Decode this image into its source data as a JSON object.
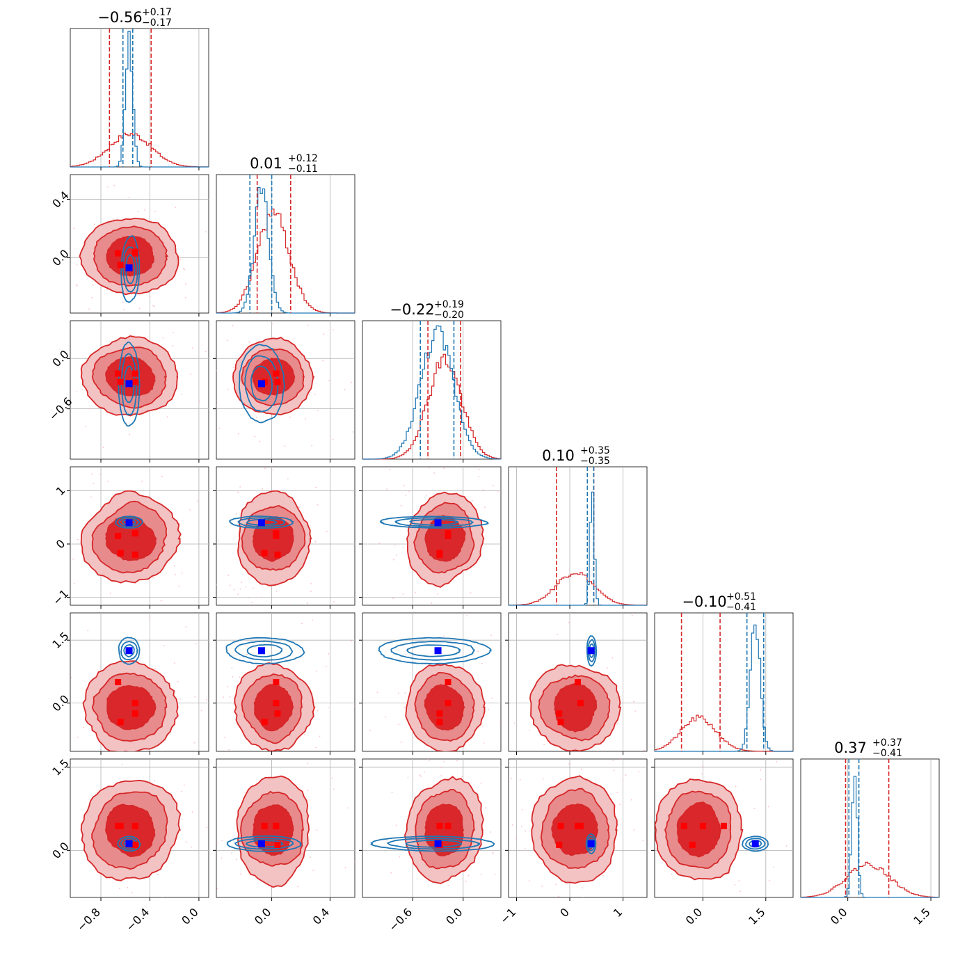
{
  "chart_data": {
    "type": "corner",
    "grid": true,
    "dimensions": 6,
    "colors": {
      "red": "#d62728",
      "red_fill_outer": "#f3c2c3",
      "red_fill_mid": "#e88b8d",
      "red_fill_inner": "#d9272b",
      "blue": "#1f77b4",
      "truth_blue": "#0000ff",
      "truth_red": "#ff0000",
      "grid": "#b0b0b0"
    },
    "params": [
      {
        "title": {
          "val": "−0.56",
          "plus": "+0.17",
          "minus": "−0.17"
        },
        "range": [
          -1.05,
          0.08
        ],
        "ticks": [
          -0.8,
          -0.4,
          0.0
        ],
        "tick_labels": [
          "−0.8",
          "−0.4",
          "0.0"
        ],
        "red_quantiles": [
          -0.73,
          -0.39
        ],
        "blue_quantiles": [
          -0.62,
          -0.54
        ],
        "red_peak": -0.56,
        "red_sigma": 0.17,
        "blue_peak": -0.57,
        "blue_sigma": 0.03
      },
      {
        "title": {
          "val": "0.01",
          "plus": "+0.12",
          "minus": "−0.11"
        },
        "range": [
          -0.38,
          0.57
        ],
        "ticks": [
          0.0,
          0.4
        ],
        "tick_labels": [
          "0.0",
          "0.4"
        ],
        "red_quantiles": [
          -0.1,
          0.13
        ],
        "blue_quantiles": [
          -0.15,
          0.0
        ],
        "red_peak": 0.01,
        "red_sigma": 0.11,
        "blue_peak": -0.07,
        "blue_sigma": 0.05
      },
      {
        "title": {
          "val": "−0.22",
          "plus": "+0.19",
          "minus": "−0.20"
        },
        "range": [
          -1.2,
          0.45
        ],
        "ticks": [
          -0.6,
          0.0
        ],
        "tick_labels": [
          "−0.6",
          "0.0"
        ],
        "red_quantiles": [
          -0.42,
          -0.03
        ],
        "blue_quantiles": [
          -0.51,
          -0.11
        ],
        "red_peak": -0.22,
        "red_sigma": 0.2,
        "blue_peak": -0.31,
        "blue_sigma": 0.2
      },
      {
        "title": {
          "val": "0.10",
          "plus": "+0.35",
          "minus": "−0.35"
        },
        "range": [
          -1.15,
          1.45
        ],
        "ticks": [
          -1,
          0,
          1
        ],
        "tick_labels": [
          "−1",
          "0",
          "1"
        ],
        "red_quantiles": [
          -0.25,
          0.45
        ],
        "blue_quantiles": [
          0.33,
          0.45
        ],
        "red_peak": 0.1,
        "red_sigma": 0.35,
        "blue_peak": 0.42,
        "blue_sigma": 0.04
      },
      {
        "title": {
          "val": "−0.10",
          "plus": "+0.51",
          "minus": "−0.41"
        },
        "range": [
          -1.15,
          2.15
        ],
        "ticks": [
          0.0,
          1.5
        ],
        "tick_labels": [
          "0.0",
          "1.5"
        ],
        "red_quantiles": [
          -0.51,
          0.41
        ],
        "blue_quantiles": [
          1.05,
          1.45
        ],
        "red_peak": -0.1,
        "red_sigma": 0.42,
        "blue_peak": 1.25,
        "blue_sigma": 0.12
      },
      {
        "title": {
          "val": "0.37",
          "plus": "+0.37",
          "minus": "−0.41"
        },
        "range": [
          -0.85,
          1.65
        ],
        "ticks": [
          0.0,
          1.5
        ],
        "tick_labels": [
          "0.0",
          "1.5"
        ],
        "red_quantiles": [
          -0.04,
          0.74
        ],
        "blue_quantiles": [
          0.02,
          0.2
        ],
        "red_peak": 0.37,
        "red_sigma": 0.39,
        "blue_peak": 0.12,
        "blue_sigma": 0.05
      }
    ],
    "y_tick_params": [
      null,
      1,
      2,
      3,
      4,
      5
    ],
    "y_ticks": {
      "1": {
        "ticks": [
          0.0,
          0.4
        ],
        "tick_labels": [
          "0.0",
          "0.4"
        ]
      },
      "2": {
        "ticks": [
          -0.6,
          0.0
        ],
        "tick_labels": [
          "−0.6",
          "0.0"
        ]
      },
      "3": {
        "ticks": [
          -1,
          0,
          1
        ],
        "tick_labels": [
          "−1",
          "0",
          "1"
        ]
      },
      "4": {
        "ticks": [
          0.0,
          1.5
        ],
        "tick_labels": [
          "0.0",
          "1.5"
        ]
      },
      "5": {
        "ticks": [
          0.0,
          1.5
        ],
        "tick_labels": [
          "0.0",
          "1.5"
        ]
      }
    },
    "truth_blue": [
      -0.57,
      -0.07,
      -0.3,
      0.4,
      1.25,
      0.12
    ],
    "truth_red": [
      [
        -0.66,
        0.03,
        -0.18,
        0.15,
        0.5,
        0.44
      ],
      [
        -0.52,
        0.03,
        -0.18,
        0.2,
        0.0,
        0.44
      ],
      [
        -0.52,
        0.04,
        -0.28,
        -0.2,
        -0.25,
        0.1
      ],
      [
        -0.64,
        -0.05,
        -0.28,
        -0.17,
        -0.45,
        0.44
      ]
    ],
    "pairs": [
      {
        "i": 1,
        "j": 0,
        "red_center": [
          -0.56,
          0.01
        ],
        "red_sd": [
          0.17,
          0.115
        ],
        "blue_center": [
          -0.56,
          -0.08
        ],
        "blue_sd": [
          0.035,
          0.1
        ]
      },
      {
        "i": 2,
        "j": 0,
        "red_center": [
          -0.56,
          -0.22
        ],
        "red_sd": [
          0.17,
          0.2
        ],
        "blue_center": [
          -0.57,
          -0.31
        ],
        "blue_sd": [
          0.04,
          0.22
        ]
      },
      {
        "i": 2,
        "j": 1,
        "red_center": [
          0.01,
          -0.22
        ],
        "red_sd": [
          0.115,
          0.2
        ],
        "blue_center": [
          -0.07,
          -0.3
        ],
        "blue_sd": [
          0.07,
          0.21
        ]
      },
      {
        "i": 3,
        "j": 0,
        "red_center": [
          -0.56,
          0.1
        ],
        "red_sd": [
          0.17,
          0.36
        ],
        "blue_center": [
          -0.57,
          0.41
        ],
        "blue_sd": [
          0.05,
          0.05
        ]
      },
      {
        "i": 3,
        "j": 1,
        "red_center": [
          0.01,
          0.1
        ],
        "red_sd": [
          0.115,
          0.36
        ],
        "blue_center": [
          -0.07,
          0.41
        ],
        "blue_sd": [
          0.1,
          0.05
        ]
      },
      {
        "i": 3,
        "j": 2,
        "red_center": [
          -0.22,
          0.1
        ],
        "red_sd": [
          0.2,
          0.36
        ],
        "blue_center": [
          -0.35,
          0.41
        ],
        "blue_sd": [
          0.28,
          0.05
        ]
      },
      {
        "i": 4,
        "j": 0,
        "red_center": [
          -0.56,
          -0.1
        ],
        "red_sd": [
          0.17,
          0.45
        ],
        "blue_center": [
          -0.57,
          1.25
        ],
        "blue_sd": [
          0.04,
          0.14
        ]
      },
      {
        "i": 4,
        "j": 1,
        "red_center": [
          0.01,
          -0.1
        ],
        "red_sd": [
          0.115,
          0.45
        ],
        "blue_center": [
          -0.05,
          1.25
        ],
        "blue_sd": [
          0.12,
          0.14
        ]
      },
      {
        "i": 4,
        "j": 2,
        "red_center": [
          -0.22,
          -0.1
        ],
        "red_sd": [
          0.2,
          0.45
        ],
        "blue_center": [
          -0.35,
          1.25
        ],
        "blue_sd": [
          0.3,
          0.14
        ]
      },
      {
        "i": 4,
        "j": 3,
        "red_center": [
          0.1,
          -0.1
        ],
        "red_sd": [
          0.36,
          0.45
        ],
        "blue_center": [
          0.41,
          1.25
        ],
        "blue_sd": [
          0.04,
          0.16
        ]
      },
      {
        "i": 5,
        "j": 0,
        "red_center": [
          -0.56,
          0.37
        ],
        "red_sd": [
          0.17,
          0.4
        ],
        "blue_center": [
          -0.57,
          0.12
        ],
        "blue_sd": [
          0.04,
          0.06
        ]
      },
      {
        "i": 5,
        "j": 1,
        "red_center": [
          0.01,
          0.37
        ],
        "red_sd": [
          0.115,
          0.4
        ],
        "blue_center": [
          -0.05,
          0.12
        ],
        "blue_sd": [
          0.12,
          0.06
        ]
      },
      {
        "i": 5,
        "j": 2,
        "red_center": [
          -0.22,
          0.37
        ],
        "red_sd": [
          0.2,
          0.4
        ],
        "blue_center": [
          -0.35,
          0.12
        ],
        "blue_sd": [
          0.33,
          0.06
        ]
      },
      {
        "i": 5,
        "j": 3,
        "red_center": [
          0.1,
          0.37
        ],
        "red_sd": [
          0.36,
          0.4
        ],
        "blue_center": [
          0.4,
          0.12
        ],
        "blue_sd": [
          0.04,
          0.08
        ]
      },
      {
        "i": 5,
        "j": 4,
        "red_center": [
          -0.1,
          0.37
        ],
        "red_sd": [
          0.45,
          0.4
        ],
        "blue_center": [
          1.25,
          0.12
        ],
        "blue_sd": [
          0.14,
          0.06
        ]
      }
    ]
  }
}
